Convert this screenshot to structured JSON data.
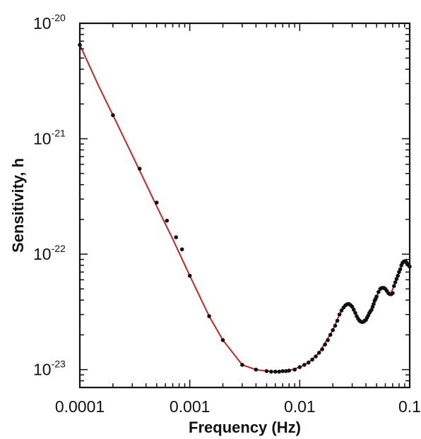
{
  "chart_data": {
    "type": "line",
    "title": "",
    "xlabel": "Frequency (Hz)",
    "ylabel": "Sensitivity, h",
    "x_scale": "log",
    "y_scale": "log",
    "xlim": [
      0.0001,
      0.1
    ],
    "ylim": [
      7e-24,
      1e-20
    ],
    "grid": false,
    "legend": "none",
    "x_ticks": [
      {
        "value": 0.0001,
        "label": "0.0001"
      },
      {
        "value": 0.001,
        "label": "0.001"
      },
      {
        "value": 0.01,
        "label": "0.01"
      },
      {
        "value": 0.1,
        "label": "0.1"
      }
    ],
    "y_ticks": [
      {
        "value": 1e-20,
        "base": "10",
        "exp": "-20"
      },
      {
        "value": 1e-21,
        "base": "10",
        "exp": "-21"
      },
      {
        "value": 1e-22,
        "base": "10",
        "exp": "-22"
      },
      {
        "value": 1e-23,
        "base": "10",
        "exp": "-23"
      }
    ],
    "series": [
      {
        "color": "#cc2222",
        "style": "line",
        "x": [
          0.0001,
          0.00015,
          0.0002,
          0.0003,
          0.0005,
          0.0007,
          0.001,
          0.0015,
          0.002,
          0.003,
          0.004,
          0.005,
          0.006,
          0.008,
          0.01,
          0.012,
          0.015,
          0.02,
          0.023,
          0.026,
          0.028,
          0.03,
          0.033,
          0.036,
          0.04,
          0.045,
          0.05,
          0.055,
          0.06,
          0.063,
          0.067,
          0.072,
          0.078,
          0.085,
          0.09,
          0.095,
          0.1
        ],
        "y": [
          6.5e-21,
          2.8e-21,
          1.6e-21,
          7.2e-22,
          2.6e-22,
          1.35e-22,
          6.5e-23,
          2.9e-23,
          1.8e-23,
          1.1e-23,
          1e-23,
          9.7e-24,
          9.6e-24,
          9.8e-24,
          1.05e-23,
          1.15e-23,
          1.4e-23,
          2.2e-23,
          3e-23,
          3.6e-23,
          3.7e-23,
          3.5e-23,
          2.9e-23,
          2.6e-23,
          2.7e-23,
          3.3e-23,
          4.3e-23,
          5.1e-23,
          5e-23,
          4.6e-23,
          4.5e-23,
          5.3e-23,
          6.5e-23,
          8e-23,
          8.7e-23,
          8.2e-23,
          7.8e-23
        ]
      },
      {
        "color": "#111111",
        "style": "markers",
        "x": [
          0.0001,
          0.0002,
          0.00035,
          0.0005,
          0.00062,
          0.00075,
          0.00085,
          0.001,
          0.0015,
          0.002,
          0.003,
          0.004,
          0.005,
          0.0055,
          0.006,
          0.0065,
          0.007,
          0.0075,
          0.008,
          0.009,
          0.01,
          0.011,
          0.012,
          0.013,
          0.014,
          0.015,
          0.016,
          0.017,
          0.018,
          0.019,
          0.02,
          0.021,
          0.022,
          0.023,
          0.024,
          0.025,
          0.026,
          0.027,
          0.028,
          0.029,
          0.03,
          0.031,
          0.032,
          0.033,
          0.034,
          0.035,
          0.036,
          0.037,
          0.038,
          0.039,
          0.04,
          0.041,
          0.042,
          0.043,
          0.044,
          0.045,
          0.046,
          0.047,
          0.048,
          0.049,
          0.05,
          0.052,
          0.054,
          0.056,
          0.058,
          0.06,
          0.062,
          0.064,
          0.066,
          0.068,
          0.07,
          0.072,
          0.074,
          0.076,
          0.078,
          0.08,
          0.082,
          0.084,
          0.086,
          0.088,
          0.09,
          0.092,
          0.094,
          0.096,
          0.098,
          0.1
        ],
        "y": [
          6.5e-21,
          1.6e-21,
          5.5e-22,
          2.8e-22,
          1.95e-22,
          1.4e-22,
          1.1e-22,
          6.5e-23,
          2.9e-23,
          1.8e-23,
          1.1e-23,
          1e-23,
          9.7e-24,
          9.6e-24,
          9.6e-24,
          9.6e-24,
          9.7e-24,
          9.7e-24,
          9.8e-24,
          1e-23,
          1.05e-23,
          1.1e-23,
          1.15e-23,
          1.22e-23,
          1.3e-23,
          1.4e-23,
          1.5e-23,
          1.65e-23,
          1.8e-23,
          2e-23,
          2.2e-23,
          2.4e-23,
          2.65e-23,
          3e-23,
          3.25e-23,
          3.45e-23,
          3.6e-23,
          3.68e-23,
          3.7e-23,
          3.62e-23,
          3.5e-23,
          3.3e-23,
          3.1e-23,
          2.9e-23,
          2.75e-23,
          2.65e-23,
          2.6e-23,
          2.58e-23,
          2.6e-23,
          2.65e-23,
          2.7e-23,
          2.82e-23,
          2.95e-23,
          3.1e-23,
          3.2e-23,
          3.3e-23,
          3.5e-23,
          3.7e-23,
          3.95e-23,
          4.1e-23,
          4.3e-23,
          4.7e-23,
          5e-23,
          5.1e-23,
          5.1e-23,
          5e-23,
          4.8e-23,
          4.6e-23,
          4.5e-23,
          4.5e-23,
          4.6e-23,
          5.3e-23,
          5.7e-23,
          6.1e-23,
          6.5e-23,
          7e-23,
          7.4e-23,
          8e-23,
          8.4e-23,
          8.6e-23,
          8.7e-23,
          8.6e-23,
          8.4e-23,
          8.2e-23,
          8e-23,
          7.8e-23
        ]
      }
    ]
  }
}
